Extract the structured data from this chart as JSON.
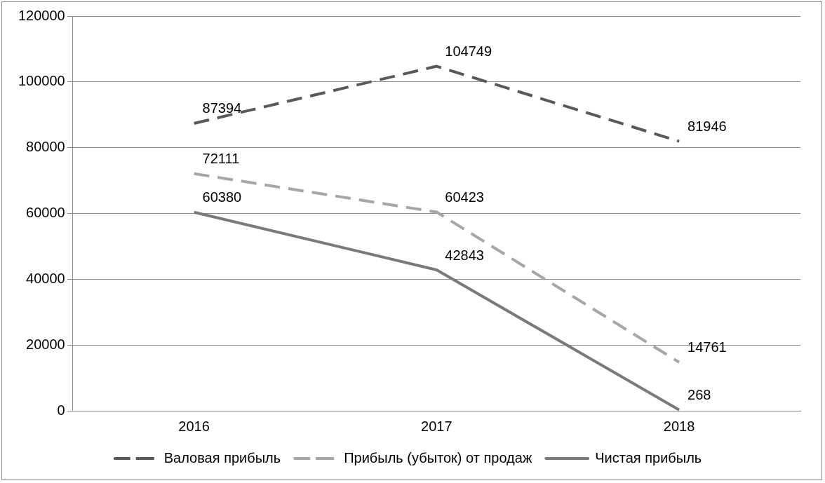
{
  "chart_data": {
    "type": "line",
    "categories": [
      "2016",
      "2017",
      "2018"
    ],
    "series": [
      {
        "name": "Валовая прибыль",
        "color": "#595959",
        "line_style": "dashed",
        "values": [
          87394,
          104749,
          81946
        ]
      },
      {
        "name": "Прибыль (убыток) от продаж",
        "color": "#a6a6a6",
        "line_style": "dashed",
        "values": [
          72111,
          60423,
          14761
        ]
      },
      {
        "name": "Чистая прибыль",
        "color": "#7a7a7a",
        "line_style": "solid",
        "values": [
          60380,
          42843,
          268
        ]
      }
    ],
    "ylim": [
      0,
      120000
    ],
    "yticks": [
      0,
      20000,
      40000,
      60000,
      80000,
      100000,
      120000
    ],
    "grid": "y",
    "legend": "bottom",
    "marker": "none",
    "data_labels": true
  }
}
